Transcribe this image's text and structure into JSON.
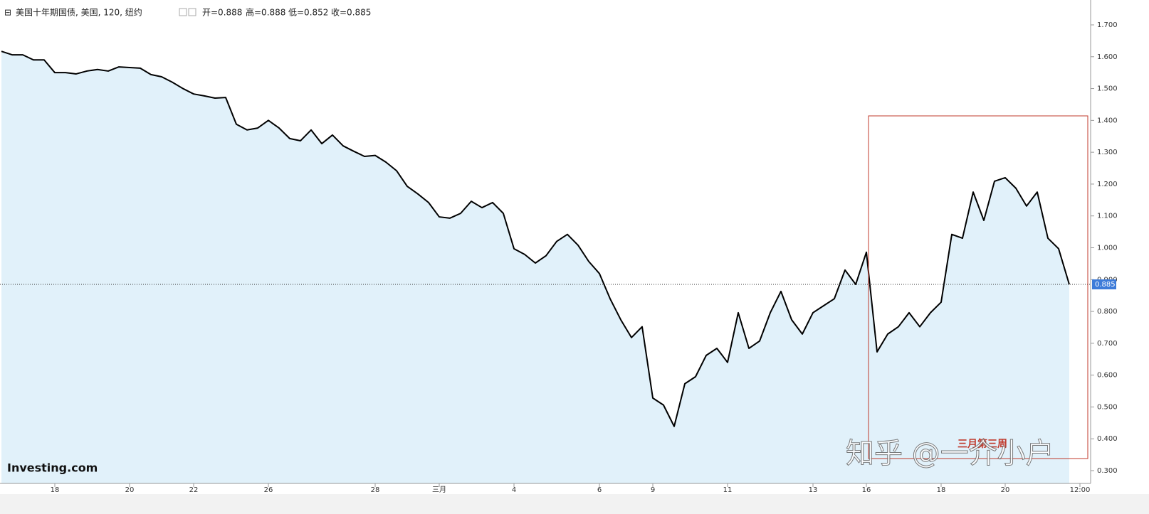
{
  "chart_data": {
    "type": "area-line",
    "title": "美国十年期国债, 美国, 120, 纽约",
    "ohlc": [
      "开=0.888",
      "高=0.888",
      "低=0.852",
      "收=0.885"
    ],
    "logo": "Investing.com",
    "watermark": "知乎 @一介小户",
    "annotation": "三月第三周",
    "current_value": 0.885,
    "color": "#000000",
    "fill": "#e1f1fa",
    "categories": [
      null,
      null,
      null,
      null,
      null,
      "18",
      null,
      null,
      null,
      null,
      null,
      null,
      "20",
      null,
      null,
      null,
      null,
      null,
      "22",
      null,
      null,
      null,
      null,
      null,
      null,
      "26",
      null,
      null,
      null,
      null,
      null,
      null,
      null,
      null,
      null,
      "28",
      null,
      null,
      null,
      null,
      null,
      "三月",
      null,
      null,
      null,
      null,
      null,
      null,
      "4",
      null,
      null,
      null,
      null,
      null,
      null,
      null,
      "6",
      null,
      null,
      null,
      null,
      "9",
      null,
      null,
      null,
      null,
      null,
      null,
      "11",
      null,
      null,
      null,
      null,
      null,
      null,
      null,
      "13",
      null,
      null,
      null,
      null,
      "16",
      null,
      null,
      null,
      null,
      null,
      null,
      "18",
      null,
      null,
      null,
      null,
      null,
      "20",
      null,
      null,
      null,
      null,
      null,
      null,
      "12:00"
    ],
    "values": [
      1.617,
      1.606,
      1.606,
      1.59,
      1.59,
      1.55,
      1.55,
      1.546,
      1.555,
      1.56,
      1.555,
      1.568,
      1.566,
      1.564,
      1.544,
      1.537,
      1.52,
      1.5,
      1.483,
      1.477,
      1.47,
      1.472,
      1.388,
      1.37,
      1.376,
      1.4,
      1.376,
      1.343,
      1.336,
      1.37,
      1.327,
      1.354,
      1.32,
      1.303,
      1.287,
      1.29,
      1.269,
      1.242,
      1.193,
      1.169,
      1.142,
      1.097,
      1.093,
      1.108,
      1.146,
      1.126,
      1.142,
      1.108,
      0.997,
      0.979,
      0.952,
      0.975,
      1.02,
      1.042,
      1.008,
      0.957,
      0.919,
      0.84,
      0.774,
      0.718,
      0.752,
      0.528,
      0.506,
      0.439,
      0.573,
      0.595,
      0.662,
      0.684,
      0.64,
      0.796,
      0.684,
      0.707,
      0.796,
      0.863,
      0.774,
      0.729,
      0.796,
      0.818,
      0.84,
      0.93,
      0.885,
      0.986,
      0.673,
      0.729,
      0.752,
      0.796,
      0.752,
      0.796,
      0.829,
      1.042,
      1.03,
      1.175,
      1.086,
      1.209,
      1.22,
      1.187,
      1.131,
      1.175,
      1.03,
      0.997,
      0.885,
      null
    ],
    "ylim": [
      0.3,
      1.7
    ],
    "yticks": [
      {
        "value": 0.3,
        "label": "0.300"
      },
      {
        "value": 0.4,
        "label": "0.400"
      },
      {
        "value": 0.5,
        "label": "0.500"
      },
      {
        "value": 0.6,
        "label": "0.600"
      },
      {
        "value": 0.7,
        "label": "0.700"
      },
      {
        "value": 0.8,
        "label": "0.800"
      },
      {
        "value": 0.9,
        "label": "0.900"
      },
      {
        "value": 1.0,
        "label": "1.000"
      },
      {
        "value": 1.1,
        "label": "1.100"
      },
      {
        "value": 1.2,
        "label": "1.200"
      },
      {
        "value": 1.3,
        "label": "1.300"
      },
      {
        "value": 1.4,
        "label": "1.400"
      },
      {
        "value": 1.5,
        "label": "1.500"
      },
      {
        "value": 1.6,
        "label": "1.600"
      },
      {
        "value": 1.7,
        "label": "1.700"
      }
    ]
  }
}
